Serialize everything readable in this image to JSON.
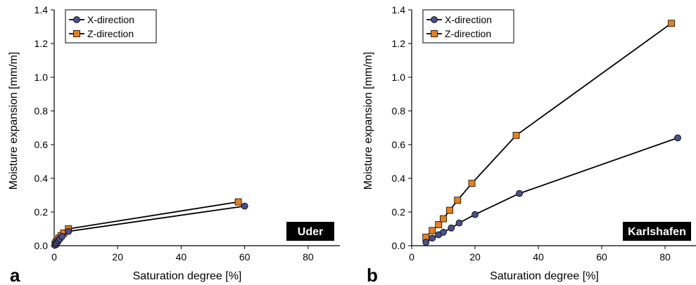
{
  "chart_data": [
    {
      "type": "line",
      "panel_label": "a",
      "badge": "Uder",
      "xlabel": "Saturation degree [%]",
      "ylabel": "Moisture expansion [mm/m]",
      "xlim": [
        0,
        90
      ],
      "ylim": [
        0,
        1.4
      ],
      "xticks": [
        "0",
        "20",
        "40",
        "60",
        "80"
      ],
      "yticks": [
        "0.0",
        "0.2",
        "0.4",
        "0.6",
        "0.8",
        "1.0",
        "1.2",
        "1.4"
      ],
      "grid": false,
      "legend_position": "top-left",
      "series": [
        {
          "name": "X-direction",
          "marker": "circle",
          "color": "#4a4f8a",
          "x": [
            0.3,
            0.6,
            0.9,
            1.3,
            1.8,
            2.5,
            4.5,
            60
          ],
          "y": [
            0.004,
            0.01,
            0.02,
            0.03,
            0.04,
            0.055,
            0.085,
            0.235
          ]
        },
        {
          "name": "Z-direction",
          "marker": "square",
          "color": "#e8801a",
          "x": [
            0.3,
            0.6,
            1.0,
            1.5,
            2.2,
            3.0,
            4.5,
            58
          ],
          "y": [
            0.01,
            0.02,
            0.03,
            0.045,
            0.06,
            0.075,
            0.1,
            0.26
          ]
        }
      ]
    },
    {
      "type": "line",
      "panel_label": "b",
      "badge": "Karlshafen",
      "xlabel": "Saturation degree [%]",
      "ylabel": "Moisture expansion [mm/m]",
      "xlim": [
        0,
        90
      ],
      "ylim": [
        0,
        1.4
      ],
      "xticks": [
        "0",
        "20",
        "40",
        "60",
        "80"
      ],
      "yticks": [
        "0.0",
        "0.2",
        "0.4",
        "0.6",
        "0.8",
        "1.0",
        "1.2",
        "1.4"
      ],
      "grid": false,
      "legend_position": "top-left",
      "series": [
        {
          "name": "X-direction",
          "marker": "circle",
          "color": "#4a4f8a",
          "x": [
            4.5,
            6.5,
            8.5,
            10,
            12.5,
            15,
            20,
            34,
            84
          ],
          "y": [
            0.02,
            0.045,
            0.065,
            0.08,
            0.105,
            0.135,
            0.185,
            0.31,
            0.64
          ]
        },
        {
          "name": "Z-direction",
          "marker": "square",
          "color": "#e8801a",
          "x": [
            4.5,
            6.5,
            8.5,
            10,
            12,
            14.5,
            19,
            33,
            82
          ],
          "y": [
            0.05,
            0.09,
            0.125,
            0.16,
            0.21,
            0.27,
            0.37,
            0.655,
            1.32
          ]
        }
      ]
    }
  ]
}
